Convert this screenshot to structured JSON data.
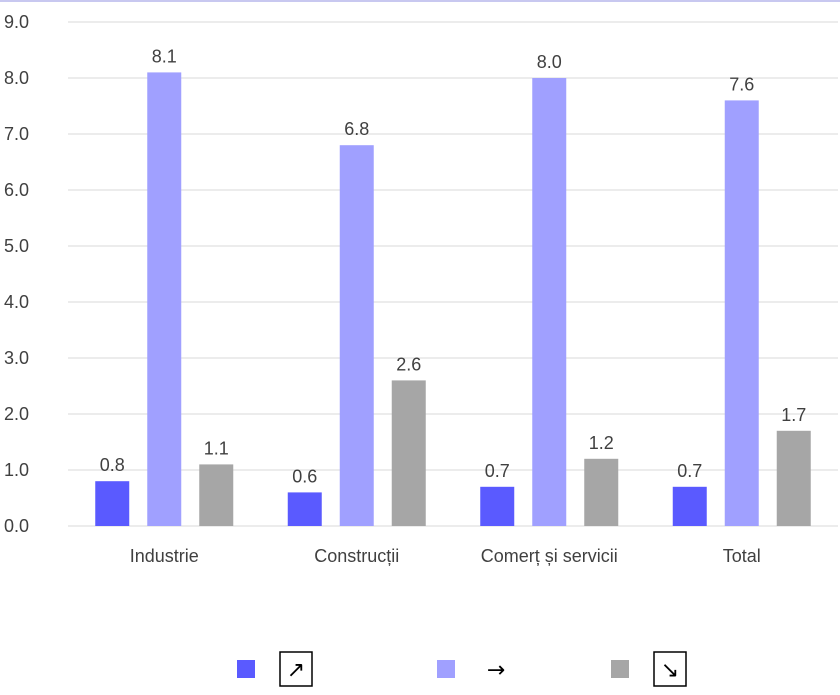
{
  "chart_data": {
    "type": "bar",
    "categories": [
      "Industrie",
      "Construcții",
      "Comerț și servicii",
      "Total"
    ],
    "series": [
      {
        "legend_symbol": "↗",
        "legend_boxed": true,
        "color": "#5a5aff",
        "values": [
          0.8,
          0.6,
          0.7,
          0.7
        ]
      },
      {
        "legend_symbol": "→",
        "legend_boxed": false,
        "color": "#a0a0ff",
        "values": [
          8.1,
          6.8,
          8.0,
          7.6
        ]
      },
      {
        "legend_symbol": "↘",
        "legend_boxed": true,
        "color": "#a6a6a6",
        "values": [
          1.1,
          2.6,
          1.2,
          1.7
        ]
      }
    ],
    "ylim": [
      0,
      9
    ],
    "yticks": [
      "0.0",
      "1.0",
      "2.0",
      "3.0",
      "4.0",
      "5.0",
      "6.0",
      "7.0",
      "8.0",
      "9.0"
    ],
    "grid": "horizontal",
    "legend_position": "bottom",
    "data_labels": true,
    "top_border_color": "#c8c8f0"
  }
}
